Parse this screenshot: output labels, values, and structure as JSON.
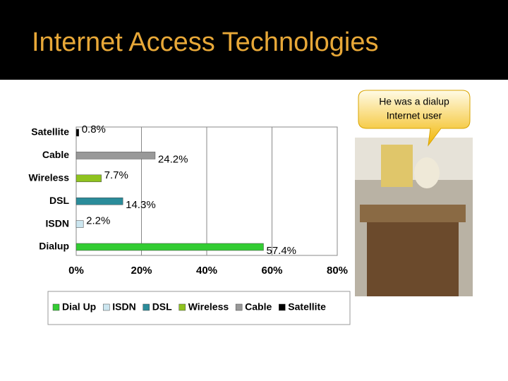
{
  "slide": {
    "title": "Internet Access Technologies",
    "callout": [
      "He was a dialup",
      "Internet user"
    ]
  },
  "chart_data": {
    "type": "bar",
    "orientation": "horizontal",
    "categories": [
      "Satellite",
      "Cable",
      "Wireless",
      "DSL",
      "ISDN",
      "Dialup"
    ],
    "values": [
      0.8,
      24.2,
      7.7,
      14.3,
      2.2,
      57.4
    ],
    "value_labels": [
      "0.8%",
      "24.2%",
      "7.7%",
      "14.3%",
      "2.2%",
      "57.4%"
    ],
    "colors": [
      "#000000",
      "#999999",
      "#8fc31f",
      "#2b8c9a",
      "#cce6f0",
      "#33cc33"
    ],
    "xlim": [
      0,
      80
    ],
    "xticks": [
      {
        "value": 0,
        "label": "0%"
      },
      {
        "value": 20,
        "label": "20%"
      },
      {
        "value": 40,
        "label": "40%"
      },
      {
        "value": 60,
        "label": "60%"
      },
      {
        "value": 80,
        "label": "80%"
      }
    ],
    "grid": true,
    "legend": [
      {
        "label": "Dial Up",
        "color": "#33cc33"
      },
      {
        "label": "ISDN",
        "color": "#cce6f0"
      },
      {
        "label": "DSL",
        "color": "#2b8c9a"
      },
      {
        "label": "Wireless",
        "color": "#8fc31f"
      },
      {
        "label": "Cable",
        "color": "#999999"
      },
      {
        "label": "Satellite",
        "color": "#000000"
      }
    ],
    "legend_position": "bottom"
  }
}
